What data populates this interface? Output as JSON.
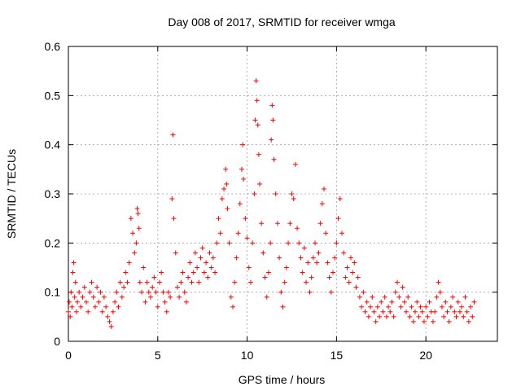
{
  "chart_data": {
    "type": "scatter",
    "title": "Day 008 of 2017, SRMTID for receiver wmga",
    "xlabel": "GPS time / hours",
    "ylabel": "SRMTID / TECUs",
    "xlim": [
      0,
      24
    ],
    "ylim": [
      0,
      0.6
    ],
    "xticks": [
      0,
      5,
      10,
      15,
      20
    ],
    "xtick_labels": [
      "0",
      "5",
      "10",
      "15",
      "20"
    ],
    "yticks": [
      0,
      0.1,
      0.2,
      0.3,
      0.4,
      0.5,
      0.6
    ],
    "ytick_labels": [
      "0",
      "0.1",
      "0.2",
      "0.3",
      "0.4",
      "0.5",
      "0.6"
    ],
    "grid": true,
    "marker": "+",
    "color": "#ff0000",
    "series": [
      {
        "name": "SRMTID",
        "points": [
          [
            0.0,
            0.06
          ],
          [
            0.05,
            0.08
          ],
          [
            0.1,
            0.05
          ],
          [
            0.15,
            0.1
          ],
          [
            0.2,
            0.07
          ],
          [
            0.25,
            0.14
          ],
          [
            0.3,
            0.16
          ],
          [
            0.35,
            0.09
          ],
          [
            0.4,
            0.12
          ],
          [
            0.45,
            0.06
          ],
          [
            0.5,
            0.08
          ],
          [
            0.6,
            0.1
          ],
          [
            0.7,
            0.07
          ],
          [
            0.8,
            0.09
          ],
          [
            0.9,
            0.11
          ],
          [
            1.0,
            0.08
          ],
          [
            1.1,
            0.06
          ],
          [
            1.2,
            0.1
          ],
          [
            1.3,
            0.12
          ],
          [
            1.4,
            0.09
          ],
          [
            1.5,
            0.07
          ],
          [
            1.6,
            0.11
          ],
          [
            1.7,
            0.08
          ],
          [
            1.8,
            0.1
          ],
          [
            1.9,
            0.06
          ],
          [
            2.0,
            0.09
          ],
          [
            2.1,
            0.07
          ],
          [
            2.2,
            0.05
          ],
          [
            2.3,
            0.04
          ],
          [
            2.4,
            0.03
          ],
          [
            2.5,
            0.06
          ],
          [
            2.6,
            0.08
          ],
          [
            2.7,
            0.1
          ],
          [
            2.8,
            0.07
          ],
          [
            2.9,
            0.12
          ],
          [
            3.0,
            0.09
          ],
          [
            3.1,
            0.11
          ],
          [
            3.2,
            0.14
          ],
          [
            3.3,
            0.12
          ],
          [
            3.4,
            0.16
          ],
          [
            3.5,
            0.25
          ],
          [
            3.6,
            0.22
          ],
          [
            3.7,
            0.18
          ],
          [
            3.8,
            0.2
          ],
          [
            3.85,
            0.27
          ],
          [
            3.9,
            0.26
          ],
          [
            3.95,
            0.23
          ],
          [
            4.0,
            0.12
          ],
          [
            4.1,
            0.1
          ],
          [
            4.2,
            0.15
          ],
          [
            4.3,
            0.08
          ],
          [
            4.4,
            0.12
          ],
          [
            4.5,
            0.1
          ],
          [
            4.6,
            0.09
          ],
          [
            4.7,
            0.11
          ],
          [
            4.8,
            0.13
          ],
          [
            4.9,
            0.1
          ],
          [
            5.0,
            0.07
          ],
          [
            5.1,
            0.12
          ],
          [
            5.2,
            0.14
          ],
          [
            5.3,
            0.1
          ],
          [
            5.4,
            0.08
          ],
          [
            5.5,
            0.06
          ],
          [
            5.6,
            0.1
          ],
          [
            5.7,
            0.09
          ],
          [
            5.8,
            0.29
          ],
          [
            5.85,
            0.42
          ],
          [
            5.9,
            0.25
          ],
          [
            6.0,
            0.18
          ],
          [
            6.1,
            0.11
          ],
          [
            6.2,
            0.09
          ],
          [
            6.3,
            0.12
          ],
          [
            6.4,
            0.14
          ],
          [
            6.5,
            0.1
          ],
          [
            6.6,
            0.08
          ],
          [
            6.7,
            0.13
          ],
          [
            6.8,
            0.16
          ],
          [
            6.9,
            0.12
          ],
          [
            7.0,
            0.14
          ],
          [
            7.1,
            0.18
          ],
          [
            7.2,
            0.15
          ],
          [
            7.3,
            0.12
          ],
          [
            7.4,
            0.17
          ],
          [
            7.5,
            0.19
          ],
          [
            7.6,
            0.14
          ],
          [
            7.7,
            0.16
          ],
          [
            7.8,
            0.13
          ],
          [
            7.9,
            0.18
          ],
          [
            8.0,
            0.15
          ],
          [
            8.1,
            0.17
          ],
          [
            8.2,
            0.14
          ],
          [
            8.3,
            0.2
          ],
          [
            8.4,
            0.25
          ],
          [
            8.5,
            0.22
          ],
          [
            8.6,
            0.29
          ],
          [
            8.7,
            0.31
          ],
          [
            8.8,
            0.35
          ],
          [
            8.85,
            0.32
          ],
          [
            8.9,
            0.27
          ],
          [
            9.0,
            0.2
          ],
          [
            9.1,
            0.09
          ],
          [
            9.2,
            0.07
          ],
          [
            9.3,
            0.12
          ],
          [
            9.4,
            0.17
          ],
          [
            9.5,
            0.22
          ],
          [
            9.6,
            0.28
          ],
          [
            9.7,
            0.35
          ],
          [
            9.75,
            0.4
          ],
          [
            9.8,
            0.33
          ],
          [
            9.9,
            0.25
          ],
          [
            10.0,
            0.21
          ],
          [
            10.1,
            0.15
          ],
          [
            10.2,
            0.12
          ],
          [
            10.3,
            0.2
          ],
          [
            10.4,
            0.3
          ],
          [
            10.45,
            0.45
          ],
          [
            10.5,
            0.53
          ],
          [
            10.55,
            0.49
          ],
          [
            10.6,
            0.44
          ],
          [
            10.65,
            0.38
          ],
          [
            10.7,
            0.32
          ],
          [
            10.8,
            0.24
          ],
          [
            10.9,
            0.18
          ],
          [
            11.0,
            0.13
          ],
          [
            11.1,
            0.09
          ],
          [
            11.2,
            0.14
          ],
          [
            11.3,
            0.2
          ],
          [
            11.35,
            0.41
          ],
          [
            11.4,
            0.48
          ],
          [
            11.45,
            0.45
          ],
          [
            11.5,
            0.37
          ],
          [
            11.6,
            0.3
          ],
          [
            11.7,
            0.24
          ],
          [
            11.8,
            0.17
          ],
          [
            11.9,
            0.1
          ],
          [
            12.0,
            0.07
          ],
          [
            12.1,
            0.12
          ],
          [
            12.2,
            0.15
          ],
          [
            12.3,
            0.2
          ],
          [
            12.4,
            0.24
          ],
          [
            12.5,
            0.3
          ],
          [
            12.6,
            0.29
          ],
          [
            12.7,
            0.36
          ],
          [
            12.8,
            0.23
          ],
          [
            12.9,
            0.2
          ],
          [
            13.0,
            0.17
          ],
          [
            13.1,
            0.14
          ],
          [
            13.2,
            0.19
          ],
          [
            13.3,
            0.12
          ],
          [
            13.4,
            0.16
          ],
          [
            13.5,
            0.1
          ],
          [
            13.6,
            0.13
          ],
          [
            13.7,
            0.17
          ],
          [
            13.8,
            0.2
          ],
          [
            13.9,
            0.16
          ],
          [
            14.0,
            0.18
          ],
          [
            14.1,
            0.24
          ],
          [
            14.2,
            0.28
          ],
          [
            14.3,
            0.31
          ],
          [
            14.4,
            0.22
          ],
          [
            14.5,
            0.16
          ],
          [
            14.6,
            0.13
          ],
          [
            14.7,
            0.1
          ],
          [
            14.8,
            0.14
          ],
          [
            14.9,
            0.17
          ],
          [
            15.0,
            0.2
          ],
          [
            15.1,
            0.25
          ],
          [
            15.2,
            0.29
          ],
          [
            15.3,
            0.22
          ],
          [
            15.4,
            0.18
          ],
          [
            15.5,
            0.13
          ],
          [
            15.6,
            0.15
          ],
          [
            15.7,
            0.12
          ],
          [
            15.8,
            0.17
          ],
          [
            15.9,
            0.14
          ],
          [
            16.0,
            0.16
          ],
          [
            16.1,
            0.11
          ],
          [
            16.2,
            0.13
          ],
          [
            16.3,
            0.09
          ],
          [
            16.4,
            0.07
          ],
          [
            16.5,
            0.1
          ],
          [
            16.6,
            0.06
          ],
          [
            16.7,
            0.08
          ],
          [
            16.8,
            0.05
          ],
          [
            16.9,
            0.07
          ],
          [
            17.0,
            0.09
          ],
          [
            17.1,
            0.06
          ],
          [
            17.2,
            0.04
          ],
          [
            17.3,
            0.07
          ],
          [
            17.4,
            0.05
          ],
          [
            17.5,
            0.08
          ],
          [
            17.6,
            0.06
          ],
          [
            17.7,
            0.09
          ],
          [
            17.8,
            0.05
          ],
          [
            17.9,
            0.07
          ],
          [
            18.0,
            0.06
          ],
          [
            18.1,
            0.08
          ],
          [
            18.2,
            0.05
          ],
          [
            18.3,
            0.1
          ],
          [
            18.4,
            0.12
          ],
          [
            18.5,
            0.09
          ],
          [
            18.6,
            0.07
          ],
          [
            18.7,
            0.11
          ],
          [
            18.8,
            0.08
          ],
          [
            18.9,
            0.06
          ],
          [
            19.0,
            0.09
          ],
          [
            19.1,
            0.05
          ],
          [
            19.2,
            0.07
          ],
          [
            19.3,
            0.04
          ],
          [
            19.4,
            0.06
          ],
          [
            19.5,
            0.08
          ],
          [
            19.6,
            0.05
          ],
          [
            19.7,
            0.07
          ],
          [
            19.8,
            0.06
          ],
          [
            19.9,
            0.04
          ],
          [
            20.0,
            0.07
          ],
          [
            20.1,
            0.05
          ],
          [
            20.2,
            0.08
          ],
          [
            20.3,
            0.06
          ],
          [
            20.4,
            0.04
          ],
          [
            20.5,
            0.06
          ],
          [
            20.6,
            0.09
          ],
          [
            20.7,
            0.12
          ],
          [
            20.8,
            0.1
          ],
          [
            20.9,
            0.07
          ],
          [
            21.0,
            0.05
          ],
          [
            21.1,
            0.08
          ],
          [
            21.2,
            0.06
          ],
          [
            21.3,
            0.04
          ],
          [
            21.4,
            0.07
          ],
          [
            21.5,
            0.09
          ],
          [
            21.6,
            0.06
          ],
          [
            21.7,
            0.05
          ],
          [
            21.8,
            0.08
          ],
          [
            21.9,
            0.06
          ],
          [
            22.0,
            0.07
          ],
          [
            22.1,
            0.05
          ],
          [
            22.2,
            0.09
          ],
          [
            22.3,
            0.06
          ],
          [
            22.4,
            0.04
          ],
          [
            22.5,
            0.07
          ],
          [
            22.6,
            0.05
          ],
          [
            22.7,
            0.08
          ]
        ]
      }
    ]
  }
}
